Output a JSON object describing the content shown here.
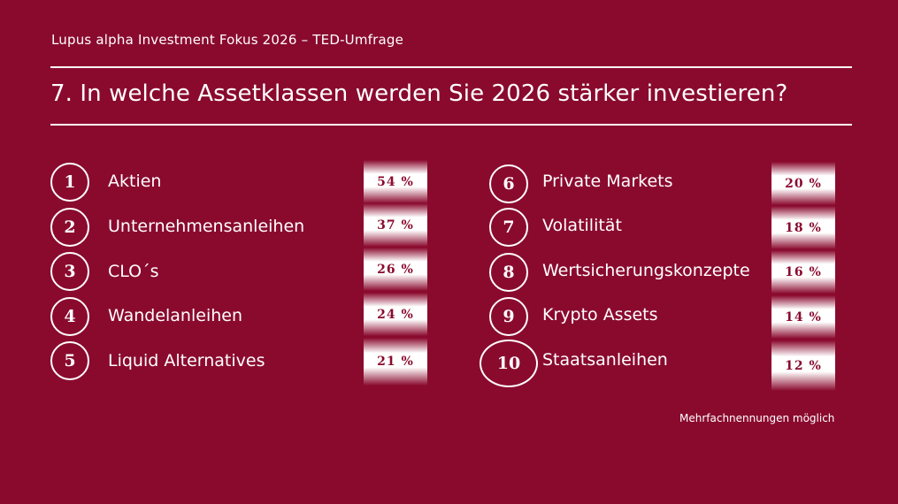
{
  "header": {
    "subtitle": "Lupus alpha Investment Fokus 2026 – TED-Umfrage",
    "question": "7. In welche Assetklassen werden Sie 2026 stärker investieren?"
  },
  "left_items": [
    {
      "rank": "1",
      "label": "Aktien",
      "percent": "54 %",
      "value": 54
    },
    {
      "rank": "2",
      "label": "Unternehmensanleihen",
      "percent": "37 %",
      "value": 37
    },
    {
      "rank": "3",
      "label": "CLO´s",
      "percent": "26 %",
      "value": 26
    },
    {
      "rank": "4",
      "label": "Wandelanleihen",
      "percent": "24 %",
      "value": 24
    },
    {
      "rank": "5",
      "label": "Liquid Alternatives",
      "percent": "21 %",
      "value": 21
    }
  ],
  "right_items": [
    {
      "rank": "6",
      "label": "Private Markets",
      "percent": "20 %",
      "value": 20
    },
    {
      "rank": "7",
      "label": "Volatilität",
      "percent": "18 %",
      "value": 18
    },
    {
      "rank": "8",
      "label": "Wertsicherungskonzepte",
      "percent": "16 %",
      "value": 16
    },
    {
      "rank": "9",
      "label": "Krypto Assets",
      "percent": "14 %",
      "value": 14
    },
    {
      "rank": "10",
      "label": "Staatsanleihen",
      "percent": "12 %",
      "value": 12
    }
  ],
  "footnote": "Mehrfachnennungen möglich",
  "colors": {
    "background": "#8a0a2e",
    "text": "#ffffff"
  }
}
